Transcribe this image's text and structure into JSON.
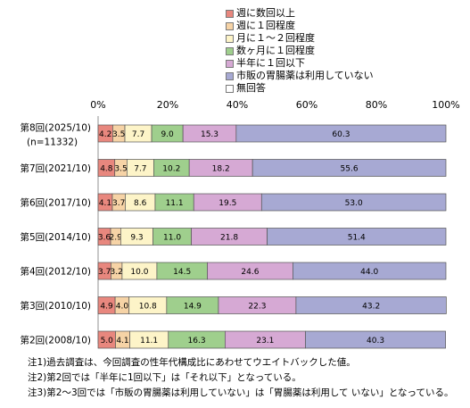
{
  "chart_data": {
    "type": "bar",
    "orientation": "horizontal",
    "stacked": true,
    "xlim": [
      0,
      100
    ],
    "x_ticks": [
      "0%",
      "20%",
      "40%",
      "60%",
      "80%",
      "100%"
    ],
    "categories": [
      {
        "label": "第8回(2025/10)",
        "sublabel": "(n=11332)"
      },
      {
        "label": "第7回(2021/10)",
        "sublabel": ""
      },
      {
        "label": "第6回(2017/10)",
        "sublabel": ""
      },
      {
        "label": "第5回(2014/10)",
        "sublabel": ""
      },
      {
        "label": "第4回(2012/10)",
        "sublabel": ""
      },
      {
        "label": "第3回(2010/10)",
        "sublabel": ""
      },
      {
        "label": "第2回(2008/10)",
        "sublabel": ""
      }
    ],
    "series": [
      {
        "name": "週に数回以上",
        "color": "#e8877e",
        "values": [
          4.2,
          4.8,
          4.1,
          3.6,
          3.7,
          4.9,
          5.0
        ]
      },
      {
        "name": "週に１回程度",
        "color": "#f6d3a6",
        "values": [
          3.5,
          3.5,
          3.7,
          2.9,
          3.2,
          4.0,
          4.1
        ]
      },
      {
        "name": "月に１～２回程度",
        "color": "#fdf4c8",
        "values": [
          7.7,
          7.7,
          8.6,
          9.3,
          10.0,
          10.8,
          11.1
        ]
      },
      {
        "name": "数ヶ月に１回程度",
        "color": "#9fcf8d",
        "values": [
          9.0,
          10.2,
          11.1,
          11.0,
          14.5,
          14.9,
          16.3
        ]
      },
      {
        "name": "半年に１回以下",
        "color": "#d6a9d4",
        "values": [
          15.3,
          18.2,
          19.5,
          21.8,
          24.6,
          22.3,
          23.1
        ]
      },
      {
        "name": "市販の胃腸薬は利用していない",
        "color": "#a7a9d3",
        "values": [
          60.3,
          55.6,
          53.0,
          51.4,
          44.0,
          43.2,
          40.3
        ]
      },
      {
        "name": "無回答",
        "color": "#ffffff",
        "values": [
          0,
          0,
          0,
          0,
          0,
          0,
          0
        ]
      }
    ],
    "data_labels": [
      [
        "4.2",
        "3.5",
        "7.7",
        "9.0",
        "15.3",
        "60.3"
      ],
      [
        "4.8",
        "3.5",
        "7.7",
        "10.2",
        "18.2",
        "55.6"
      ],
      [
        "4.1",
        "3.7",
        "8.6",
        "11.1",
        "19.5",
        "53.0"
      ],
      [
        "3.6",
        "2.9",
        "9.3",
        "11.0",
        "21.8",
        "51.4"
      ],
      [
        "3.7",
        "3.2",
        "10.0",
        "14.5",
        "24.6",
        "44.0"
      ],
      [
        "4.9",
        "4.0",
        "10.8",
        "14.9",
        "22.3",
        "43.2"
      ],
      [
        "5.0",
        "4.1",
        "11.1",
        "16.3",
        "23.1",
        "40.3"
      ]
    ],
    "legend_position": "top-right",
    "grid": false
  },
  "notes": [
    "注1)過去調査は、今回調査の性年代構成比にあわせてウエイトバックした値。",
    "注2)第2回では「半年に1回以下」は「それ以下」となっている。",
    "注3)第2～3回では「市販の胃腸薬は利用していない」は「胃腸薬は利用して いない」となっている。"
  ]
}
